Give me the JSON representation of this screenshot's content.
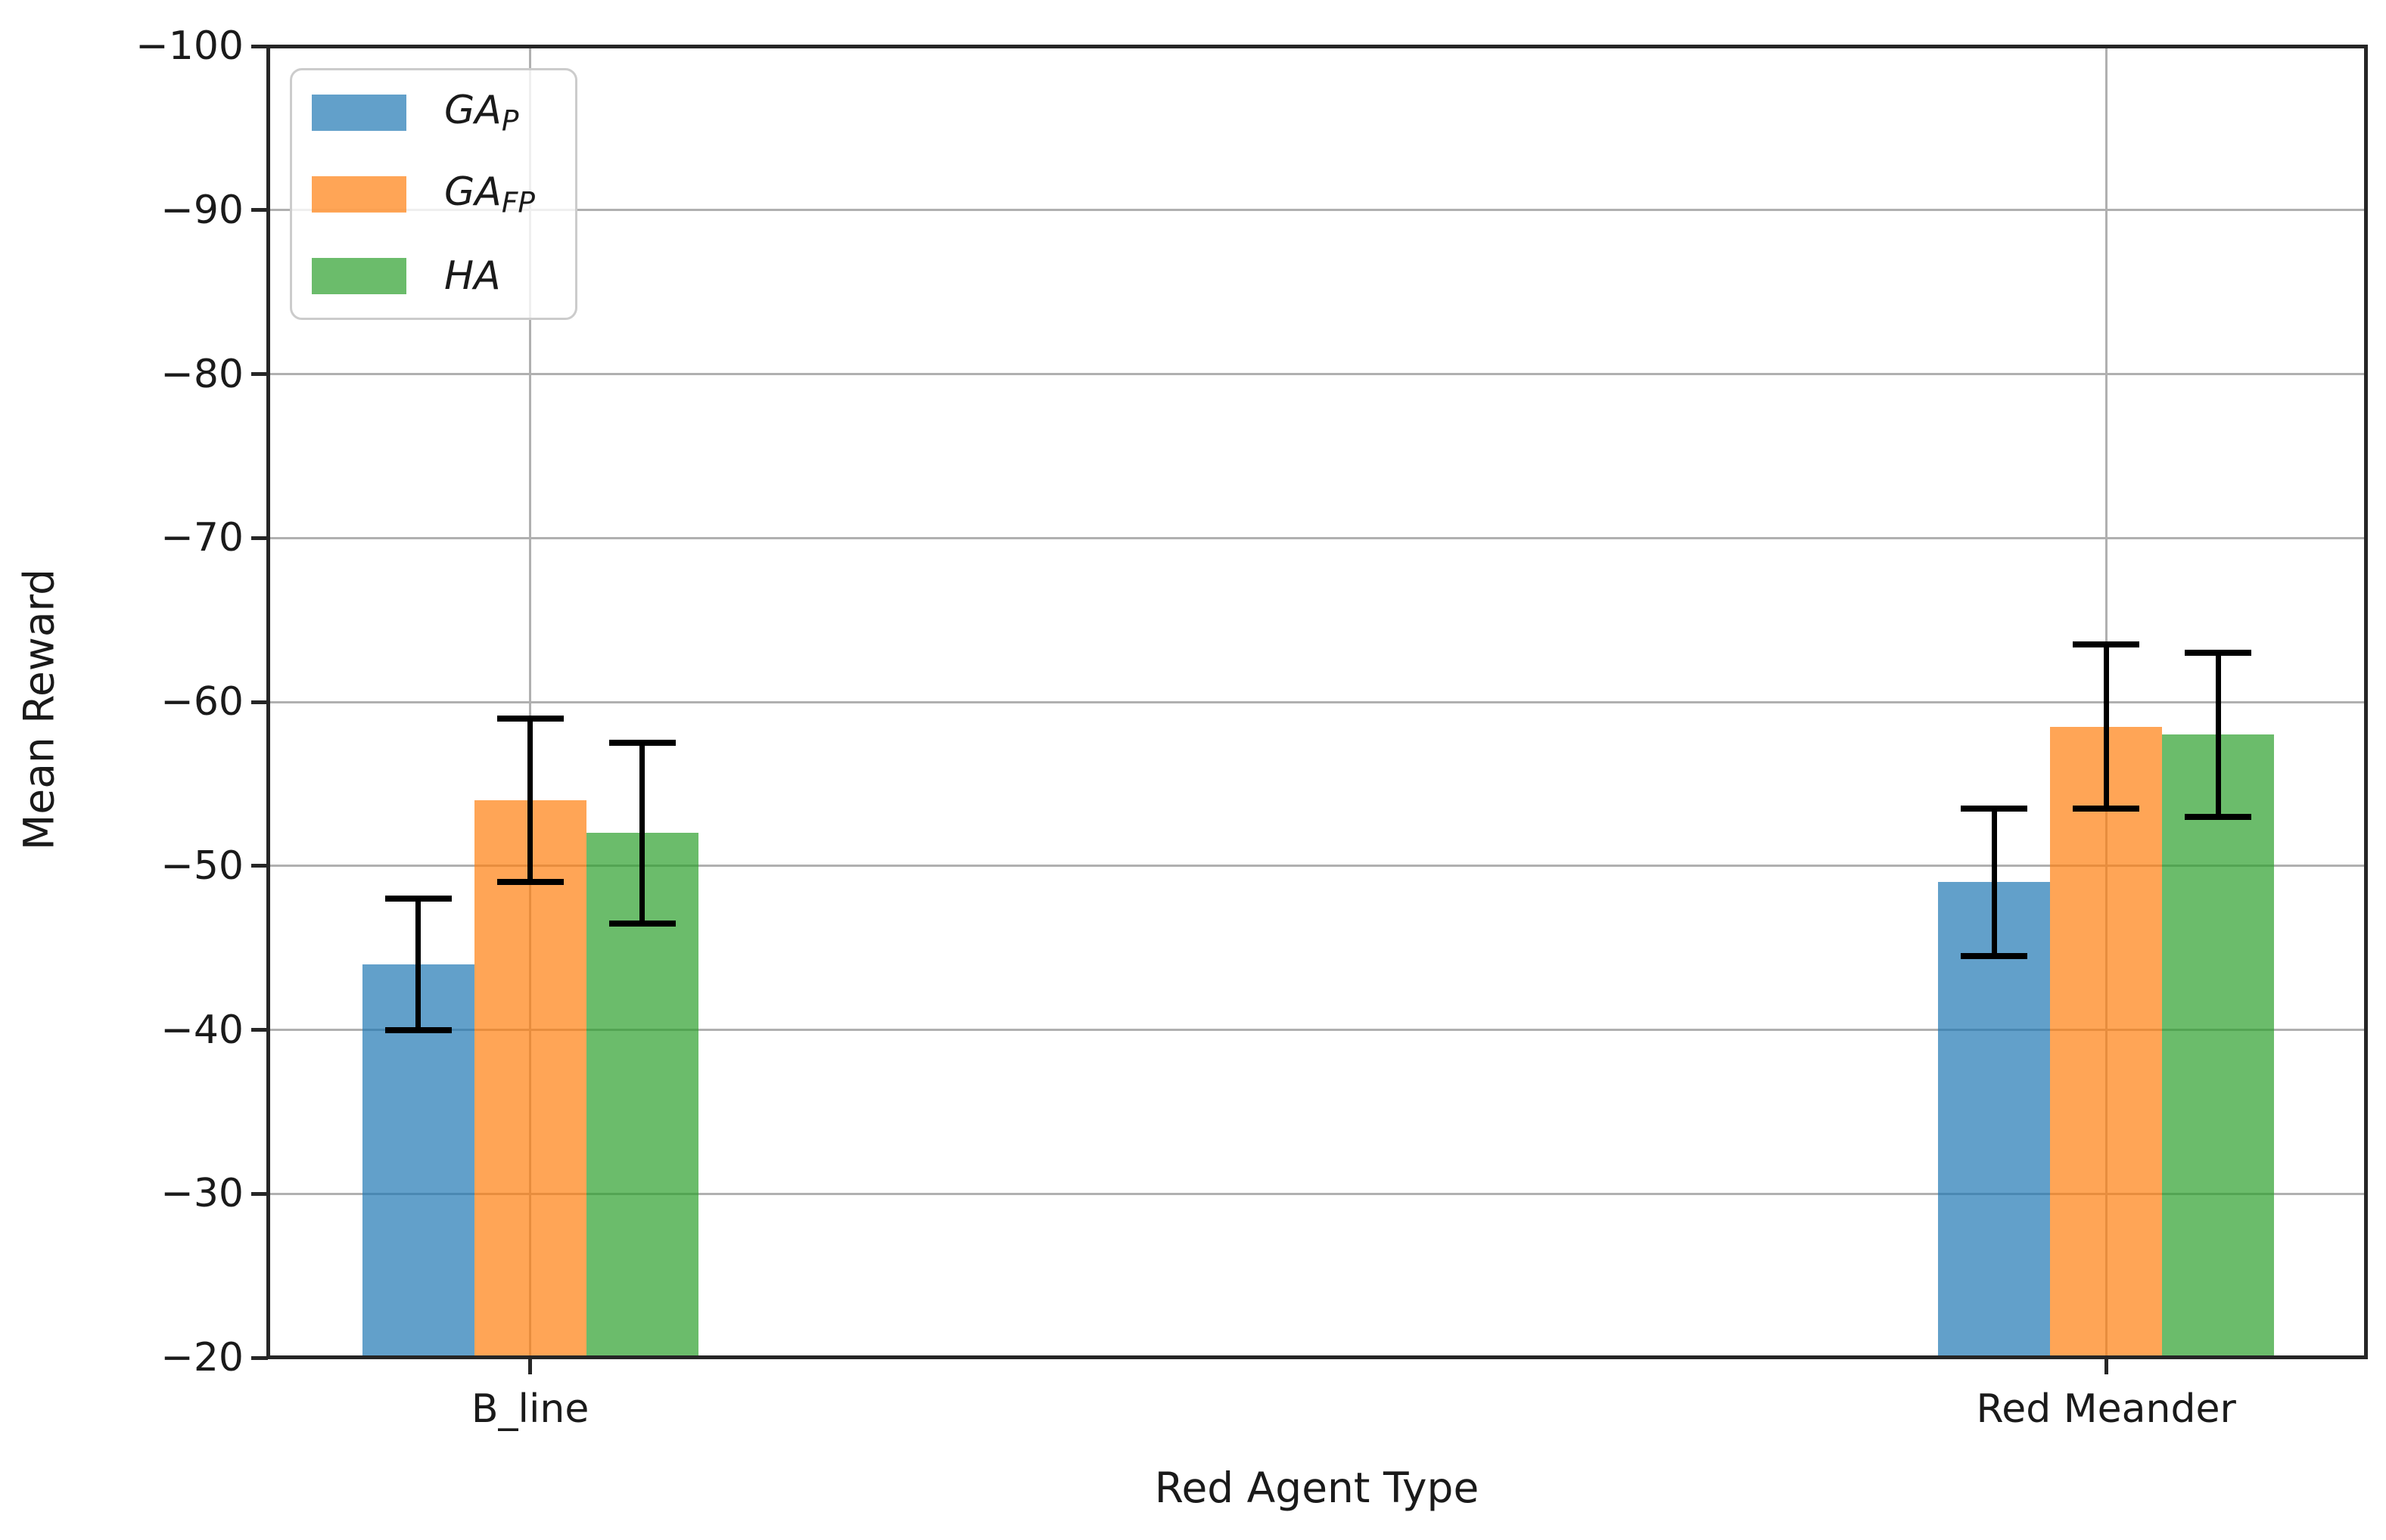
{
  "figure": {
    "background": "#ffffff",
    "text_color": "#1a1a1a"
  },
  "chart_data": {
    "type": "bar",
    "title": "",
    "xlabel": "Red Agent Type",
    "ylabel": "Mean Reward",
    "categories": [
      "B_line",
      "Red Meander"
    ],
    "series": [
      {
        "name": "GA_P",
        "legend_main": "GA",
        "legend_sub": "P",
        "color": "rgba(31,119,180,0.7)",
        "values": [
          -44,
          -49
        ],
        "errors": [
          4,
          4.5
        ]
      },
      {
        "name": "GA_FP",
        "legend_main": "GA",
        "legend_sub": "FP",
        "color": "rgba(255,127,14,0.7)",
        "values": [
          -54,
          -58.5
        ],
        "errors": [
          5,
          5
        ]
      },
      {
        "name": "HA",
        "legend_main": "HA",
        "legend_sub": "",
        "color": "rgba(44,160,44,0.7)",
        "values": [
          -52,
          -58
        ],
        "errors": [
          5.5,
          5
        ]
      }
    ],
    "error_bar_color": "#000000",
    "ylim": [
      -100,
      -20
    ],
    "y_axis_inverted": true,
    "yticks": [
      -100,
      -90,
      -80,
      -70,
      -60,
      -50,
      -40,
      -30,
      -20
    ],
    "grid": true,
    "gridline_color": "#b0b0b0",
    "legend_position": "upper left",
    "layout": {
      "group_center_frac": [
        0.125,
        0.876
      ],
      "bar_width_frac": 0.0534
    }
  }
}
